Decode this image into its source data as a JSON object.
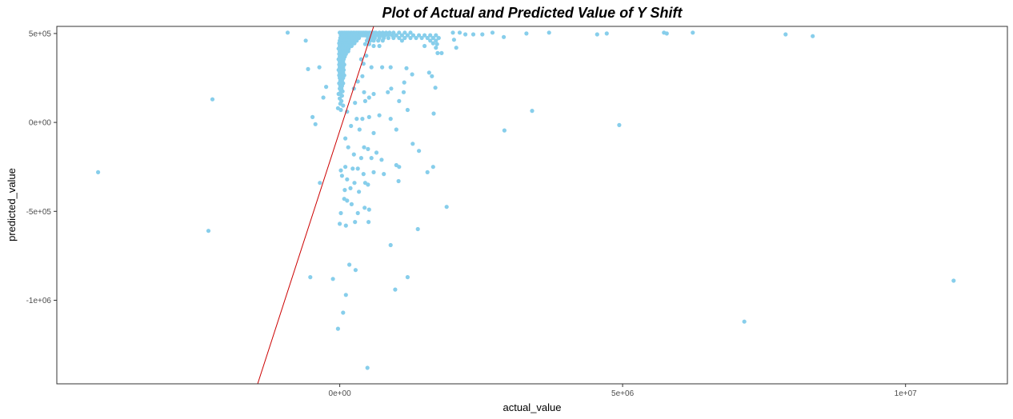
{
  "chart_data": {
    "type": "scatter",
    "title": "Plot of Actual and Predicted Value of Y Shift",
    "xlabel": "actual_value",
    "ylabel": "predicted_value",
    "xlim": [
      -5000000,
      11800000
    ],
    "ylim": [
      -1470000,
      540000
    ],
    "x_ticks": [
      {
        "value": 0,
        "label": "0e+00"
      },
      {
        "value": 5000000,
        "label": "5e+06"
      },
      {
        "value": 10000000,
        "label": "1e+07"
      }
    ],
    "y_ticks": [
      {
        "value": 500000,
        "label": "5e+05"
      },
      {
        "value": 0,
        "label": "0e+00"
      },
      {
        "value": -500000,
        "label": "-5e+05"
      },
      {
        "value": -1000000,
        "label": "-1e+06"
      }
    ],
    "grid": false,
    "point_color": "#87CEEB",
    "reference_line": {
      "color": "#CC0000",
      "from": [
        -1450000,
        -1470000
      ],
      "to": [
        600000,
        540000
      ]
    },
    "points": [
      [
        -4270000,
        -280000
      ],
      [
        -2250000,
        130000
      ],
      [
        -2320000,
        -610000
      ],
      [
        -920000,
        505000
      ],
      [
        -600000,
        460000
      ],
      [
        -560000,
        300000
      ],
      [
        -480000,
        30000
      ],
      [
        -360000,
        310000
      ],
      [
        -290000,
        140000
      ],
      [
        -240000,
        200000
      ],
      [
        -430000,
        -10000
      ],
      [
        -350000,
        -340000
      ],
      [
        -520000,
        -870000
      ],
      [
        -120000,
        -880000
      ],
      [
        -30000,
        -1160000
      ],
      [
        60000,
        -1070000
      ],
      [
        110000,
        -970000
      ],
      [
        170000,
        -800000
      ],
      [
        280000,
        -830000
      ],
      [
        490000,
        -1380000
      ],
      [
        0,
        505000
      ],
      [
        30000,
        505000
      ],
      [
        60000,
        505000
      ],
      [
        90000,
        505000
      ],
      [
        120000,
        505000
      ],
      [
        150000,
        505000
      ],
      [
        180000,
        505000
      ],
      [
        210000,
        505000
      ],
      [
        240000,
        505000
      ],
      [
        270000,
        505000
      ],
      [
        300000,
        505000
      ],
      [
        330000,
        505000
      ],
      [
        360000,
        505000
      ],
      [
        390000,
        505000
      ],
      [
        420000,
        505000
      ],
      [
        450000,
        505000
      ],
      [
        20000,
        490000
      ],
      [
        50000,
        490000
      ],
      [
        80000,
        490000
      ],
      [
        110000,
        490000
      ],
      [
        140000,
        490000
      ],
      [
        170000,
        490000
      ],
      [
        200000,
        490000
      ],
      [
        230000,
        490000
      ],
      [
        260000,
        490000
      ],
      [
        290000,
        490000
      ],
      [
        320000,
        490000
      ],
      [
        350000,
        490000
      ],
      [
        380000,
        490000
      ],
      [
        410000,
        490000
      ],
      [
        440000,
        490000
      ],
      [
        10000,
        475000
      ],
      [
        40000,
        475000
      ],
      [
        70000,
        475000
      ],
      [
        100000,
        475000
      ],
      [
        130000,
        475000
      ],
      [
        160000,
        475000
      ],
      [
        190000,
        475000
      ],
      [
        220000,
        475000
      ],
      [
        250000,
        475000
      ],
      [
        280000,
        475000
      ],
      [
        310000,
        475000
      ],
      [
        340000,
        475000
      ],
      [
        0,
        460000
      ],
      [
        30000,
        460000
      ],
      [
        60000,
        460000
      ],
      [
        90000,
        460000
      ],
      [
        120000,
        460000
      ],
      [
        150000,
        460000
      ],
      [
        180000,
        460000
      ],
      [
        210000,
        460000
      ],
      [
        240000,
        460000
      ],
      [
        270000,
        460000
      ],
      [
        300000,
        460000
      ],
      [
        -10000,
        445000
      ],
      [
        20000,
        445000
      ],
      [
        50000,
        445000
      ],
      [
        80000,
        445000
      ],
      [
        110000,
        445000
      ],
      [
        140000,
        445000
      ],
      [
        170000,
        445000
      ],
      [
        200000,
        445000
      ],
      [
        230000,
        445000
      ],
      [
        260000,
        445000
      ],
      [
        0,
        430000
      ],
      [
        30000,
        430000
      ],
      [
        60000,
        430000
      ],
      [
        90000,
        430000
      ],
      [
        120000,
        430000
      ],
      [
        150000,
        430000
      ],
      [
        180000,
        430000
      ],
      [
        210000,
        430000
      ],
      [
        -20000,
        415000
      ],
      [
        10000,
        415000
      ],
      [
        40000,
        415000
      ],
      [
        70000,
        415000
      ],
      [
        100000,
        415000
      ],
      [
        130000,
        415000
      ],
      [
        160000,
        415000
      ],
      [
        0,
        400000
      ],
      [
        30000,
        400000
      ],
      [
        60000,
        400000
      ],
      [
        90000,
        400000
      ],
      [
        120000,
        400000
      ],
      [
        150000,
        400000
      ],
      [
        -10000,
        385000
      ],
      [
        20000,
        385000
      ],
      [
        50000,
        385000
      ],
      [
        80000,
        385000
      ],
      [
        110000,
        385000
      ],
      [
        0,
        370000
      ],
      [
        30000,
        370000
      ],
      [
        60000,
        370000
      ],
      [
        90000,
        370000
      ],
      [
        -20000,
        355000
      ],
      [
        10000,
        355000
      ],
      [
        40000,
        355000
      ],
      [
        70000,
        355000
      ],
      [
        0,
        340000
      ],
      [
        30000,
        340000
      ],
      [
        60000,
        340000
      ],
      [
        -10000,
        325000
      ],
      [
        20000,
        325000
      ],
      [
        50000,
        325000
      ],
      [
        80000,
        325000
      ],
      [
        0,
        310000
      ],
      [
        30000,
        310000
      ],
      [
        60000,
        310000
      ],
      [
        -20000,
        295000
      ],
      [
        10000,
        295000
      ],
      [
        40000,
        295000
      ],
      [
        70000,
        295000
      ],
      [
        0,
        280000
      ],
      [
        30000,
        280000
      ],
      [
        60000,
        280000
      ],
      [
        -10000,
        265000
      ],
      [
        20000,
        265000
      ],
      [
        50000,
        265000
      ],
      [
        80000,
        265000
      ],
      [
        0,
        250000
      ],
      [
        30000,
        250000
      ],
      [
        60000,
        250000
      ],
      [
        10000,
        235000
      ],
      [
        40000,
        235000
      ],
      [
        -10000,
        220000
      ],
      [
        20000,
        220000
      ],
      [
        60000,
        220000
      ],
      [
        10000,
        205000
      ],
      [
        40000,
        205000
      ],
      [
        0,
        190000
      ],
      [
        30000,
        190000
      ],
      [
        20000,
        175000
      ],
      [
        50000,
        175000
      ],
      [
        -20000,
        160000
      ],
      [
        10000,
        160000
      ],
      [
        40000,
        150000
      ],
      [
        0,
        135000
      ],
      [
        30000,
        120000
      ],
      [
        10000,
        105000
      ],
      [
        60000,
        95000
      ],
      [
        -30000,
        80000
      ],
      [
        20000,
        70000
      ],
      [
        130000,
        60000
      ],
      [
        480000,
        505000
      ],
      [
        520000,
        505000
      ],
      [
        560000,
        505000
      ],
      [
        600000,
        505000
      ],
      [
        640000,
        505000
      ],
      [
        700000,
        505000
      ],
      [
        760000,
        505000
      ],
      [
        820000,
        505000
      ],
      [
        880000,
        505000
      ],
      [
        950000,
        505000
      ],
      [
        1050000,
        505000
      ],
      [
        1150000,
        505000
      ],
      [
        1250000,
        505000
      ],
      [
        470000,
        490000
      ],
      [
        510000,
        490000
      ],
      [
        550000,
        490000
      ],
      [
        590000,
        490000
      ],
      [
        630000,
        490000
      ],
      [
        680000,
        490000
      ],
      [
        740000,
        490000
      ],
      [
        800000,
        490000
      ],
      [
        860000,
        490000
      ],
      [
        930000,
        490000
      ],
      [
        1000000,
        490000
      ],
      [
        1100000,
        490000
      ],
      [
        1200000,
        490000
      ],
      [
        1300000,
        490000
      ],
      [
        1400000,
        490000
      ],
      [
        1500000,
        490000
      ],
      [
        1600000,
        490000
      ],
      [
        1700000,
        490000
      ],
      [
        500000,
        475000
      ],
      [
        560000,
        475000
      ],
      [
        620000,
        475000
      ],
      [
        700000,
        475000
      ],
      [
        780000,
        475000
      ],
      [
        860000,
        475000
      ],
      [
        950000,
        475000
      ],
      [
        1050000,
        475000
      ],
      [
        1150000,
        475000
      ],
      [
        1250000,
        475000
      ],
      [
        1350000,
        475000
      ],
      [
        1450000,
        475000
      ],
      [
        1550000,
        475000
      ],
      [
        1650000,
        475000
      ],
      [
        1750000,
        475000
      ],
      [
        480000,
        460000
      ],
      [
        540000,
        460000
      ],
      [
        600000,
        460000
      ],
      [
        680000,
        460000
      ],
      [
        760000,
        460000
      ],
      [
        1100000,
        460000
      ],
      [
        1600000,
        460000
      ],
      [
        1700000,
        460000
      ],
      [
        450000,
        440000
      ],
      [
        520000,
        440000
      ],
      [
        600000,
        430000
      ],
      [
        700000,
        430000
      ],
      [
        1500000,
        430000
      ],
      [
        1650000,
        445000
      ],
      [
        1700000,
        420000
      ],
      [
        1720000,
        440000
      ],
      [
        2000000,
        505000
      ],
      [
        2120000,
        505000
      ],
      [
        2220000,
        495000
      ],
      [
        2360000,
        495000
      ],
      [
        2520000,
        495000
      ],
      [
        2700000,
        505000
      ],
      [
        2900000,
        480000
      ],
      [
        3300000,
        500000
      ],
      [
        3700000,
        505000
      ],
      [
        4550000,
        495000
      ],
      [
        4720000,
        500000
      ],
      [
        5730000,
        505000
      ],
      [
        5780000,
        500000
      ],
      [
        6240000,
        505000
      ],
      [
        7880000,
        495000
      ],
      [
        8360000,
        485000
      ],
      [
        2020000,
        465000
      ],
      [
        2060000,
        420000
      ],
      [
        1730000,
        390000
      ],
      [
        1800000,
        390000
      ],
      [
        470000,
        375000
      ],
      [
        380000,
        355000
      ],
      [
        420000,
        330000
      ],
      [
        560000,
        310000
      ],
      [
        750000,
        310000
      ],
      [
        900000,
        310000
      ],
      [
        1180000,
        305000
      ],
      [
        1580000,
        280000
      ],
      [
        1280000,
        270000
      ],
      [
        1630000,
        260000
      ],
      [
        1140000,
        225000
      ],
      [
        1690000,
        195000
      ],
      [
        400000,
        260000
      ],
      [
        320000,
        230000
      ],
      [
        430000,
        170000
      ],
      [
        600000,
        160000
      ],
      [
        250000,
        190000
      ],
      [
        450000,
        120000
      ],
      [
        270000,
        110000
      ],
      [
        520000,
        140000
      ],
      [
        850000,
        170000
      ],
      [
        910000,
        190000
      ],
      [
        1130000,
        170000
      ],
      [
        1050000,
        120000
      ],
      [
        1200000,
        70000
      ],
      [
        1660000,
        50000
      ],
      [
        3400000,
        65000
      ],
      [
        4940000,
        -15000
      ],
      [
        2910000,
        -45000
      ],
      [
        300000,
        20000
      ],
      [
        400000,
        20000
      ],
      [
        520000,
        30000
      ],
      [
        700000,
        40000
      ],
      [
        900000,
        20000
      ],
      [
        200000,
        -20000
      ],
      [
        350000,
        -40000
      ],
      [
        600000,
        -60000
      ],
      [
        1000000,
        -40000
      ],
      [
        100000,
        -90000
      ],
      [
        150000,
        -140000
      ],
      [
        430000,
        -140000
      ],
      [
        500000,
        -150000
      ],
      [
        650000,
        -170000
      ],
      [
        1290000,
        -120000
      ],
      [
        1400000,
        -160000
      ],
      [
        250000,
        -180000
      ],
      [
        380000,
        -200000
      ],
      [
        560000,
        -200000
      ],
      [
        740000,
        -210000
      ],
      [
        1000000,
        -240000
      ],
      [
        1050000,
        -250000
      ],
      [
        1650000,
        -250000
      ],
      [
        1550000,
        -280000
      ],
      [
        1040000,
        -330000
      ],
      [
        230000,
        -260000
      ],
      [
        320000,
        -260000
      ],
      [
        420000,
        -290000
      ],
      [
        600000,
        -280000
      ],
      [
        780000,
        -290000
      ],
      [
        100000,
        -250000
      ],
      [
        20000,
        -270000
      ],
      [
        40000,
        -300000
      ],
      [
        130000,
        -320000
      ],
      [
        260000,
        -340000
      ],
      [
        450000,
        -340000
      ],
      [
        500000,
        -350000
      ],
      [
        190000,
        -370000
      ],
      [
        90000,
        -380000
      ],
      [
        340000,
        -390000
      ],
      [
        80000,
        -430000
      ],
      [
        130000,
        -440000
      ],
      [
        210000,
        -460000
      ],
      [
        520000,
        -490000
      ],
      [
        440000,
        -480000
      ],
      [
        20000,
        -510000
      ],
      [
        320000,
        -510000
      ],
      [
        1890000,
        -475000
      ],
      [
        0,
        -570000
      ],
      [
        110000,
        -580000
      ],
      [
        270000,
        -560000
      ],
      [
        510000,
        -560000
      ],
      [
        1380000,
        -600000
      ],
      [
        900000,
        -690000
      ],
      [
        980000,
        -940000
      ],
      [
        1200000,
        -870000
      ],
      [
        7150000,
        -1120000
      ],
      [
        10850000,
        -890000
      ]
    ]
  }
}
